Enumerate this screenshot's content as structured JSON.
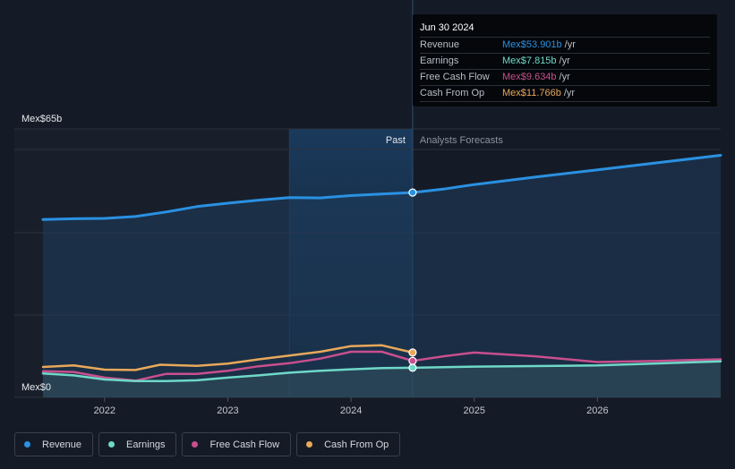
{
  "chart_data": {
    "type": "area-line",
    "y_axis": {
      "top_label": "Mex$65b",
      "bottom_label": "Mex$0",
      "min": 0,
      "max": 65
    },
    "x_axis": {
      "ticks": [
        {
          "label": "2022",
          "value": 2022.0
        },
        {
          "label": "2023",
          "value": 2023.0
        },
        {
          "label": "2024",
          "value": 2024.0
        },
        {
          "label": "2025",
          "value": 2025.0
        },
        {
          "label": "2026",
          "value": 2026.0
        }
      ],
      "range": [
        2021.5,
        2027.0
      ]
    },
    "divider": {
      "value": 2024.5,
      "past_label": "Past",
      "forecast_label": "Analysts Forecasts",
      "shade_start": 2023.5
    },
    "series": [
      {
        "name": "Revenue",
        "color": "#2a91e2",
        "fill": true,
        "points": [
          [
            2021.5,
            46.8
          ],
          [
            2021.75,
            47.0
          ],
          [
            2022.0,
            47.1
          ],
          [
            2022.25,
            47.6
          ],
          [
            2022.5,
            48.8
          ],
          [
            2022.75,
            50.2
          ],
          [
            2023.0,
            51.1
          ],
          [
            2023.25,
            51.9
          ],
          [
            2023.5,
            52.6
          ],
          [
            2023.75,
            52.5
          ],
          [
            2024.0,
            53.1
          ],
          [
            2024.25,
            53.5
          ],
          [
            2024.5,
            53.9
          ],
          [
            2024.75,
            54.8
          ],
          [
            2025.0,
            56.0
          ],
          [
            2025.5,
            58.0
          ],
          [
            2026.0,
            59.9
          ],
          [
            2026.5,
            61.8
          ],
          [
            2027.0,
            63.7
          ]
        ]
      },
      {
        "name": "Cash From Op",
        "color": "#e8a85a",
        "fill": false,
        "points": [
          [
            2021.5,
            8.0
          ],
          [
            2021.75,
            8.4
          ],
          [
            2022.0,
            7.3
          ],
          [
            2022.25,
            7.2
          ],
          [
            2022.45,
            8.6
          ],
          [
            2022.75,
            8.3
          ],
          [
            2023.0,
            8.9
          ],
          [
            2023.25,
            10.0
          ],
          [
            2023.5,
            11.0
          ],
          [
            2023.75,
            12.0
          ],
          [
            2024.0,
            13.5
          ],
          [
            2024.25,
            13.7
          ],
          [
            2024.5,
            11.8
          ]
        ]
      },
      {
        "name": "Free Cash Flow",
        "color": "#c94f8e",
        "fill": false,
        "points": [
          [
            2021.5,
            6.9
          ],
          [
            2021.75,
            6.7
          ],
          [
            2022.0,
            5.2
          ],
          [
            2022.25,
            4.4
          ],
          [
            2022.5,
            6.2
          ],
          [
            2022.75,
            6.2
          ],
          [
            2023.0,
            7.0
          ],
          [
            2023.25,
            8.2
          ],
          [
            2023.5,
            9.0
          ],
          [
            2023.75,
            10.2
          ],
          [
            2024.0,
            12.0
          ],
          [
            2024.25,
            12.0
          ],
          [
            2024.5,
            9.6
          ],
          [
            2024.75,
            10.8
          ],
          [
            2025.0,
            11.8
          ],
          [
            2025.5,
            10.8
          ],
          [
            2026.0,
            9.3
          ],
          [
            2026.5,
            9.6
          ],
          [
            2027.0,
            10.0
          ]
        ]
      },
      {
        "name": "Earnings",
        "color": "#6fd8c8",
        "fill": true,
        "points": [
          [
            2021.5,
            6.3
          ],
          [
            2021.75,
            5.8
          ],
          [
            2022.0,
            4.7
          ],
          [
            2022.25,
            4.3
          ],
          [
            2022.5,
            4.3
          ],
          [
            2022.75,
            4.5
          ],
          [
            2023.0,
            5.2
          ],
          [
            2023.25,
            5.8
          ],
          [
            2023.5,
            6.5
          ],
          [
            2023.75,
            7.0
          ],
          [
            2024.0,
            7.4
          ],
          [
            2024.25,
            7.7
          ],
          [
            2024.5,
            7.8
          ],
          [
            2025.0,
            8.1
          ],
          [
            2026.0,
            8.4
          ],
          [
            2027.0,
            9.5
          ]
        ]
      }
    ],
    "tooltip": {
      "date": "Jun 30 2024",
      "rows": [
        {
          "label": "Revenue",
          "value": "Mex$53.901b",
          "unit": "/yr",
          "color": "#2a91e2"
        },
        {
          "label": "Earnings",
          "value": "Mex$7.815b",
          "unit": "/yr",
          "color": "#6fd8c8"
        },
        {
          "label": "Free Cash Flow",
          "value": "Mex$9.634b",
          "unit": "/yr",
          "color": "#c94f8e"
        },
        {
          "label": "Cash From Op",
          "value": "Mex$11.766b",
          "unit": "/yr",
          "color": "#e8a85a"
        }
      ]
    }
  },
  "legend": [
    {
      "label": "Revenue",
      "color": "#2a91e2"
    },
    {
      "label": "Earnings",
      "color": "#6fd8c8"
    },
    {
      "label": "Free Cash Flow",
      "color": "#c94f8e"
    },
    {
      "label": "Cash From Op",
      "color": "#e8a85a"
    }
  ]
}
